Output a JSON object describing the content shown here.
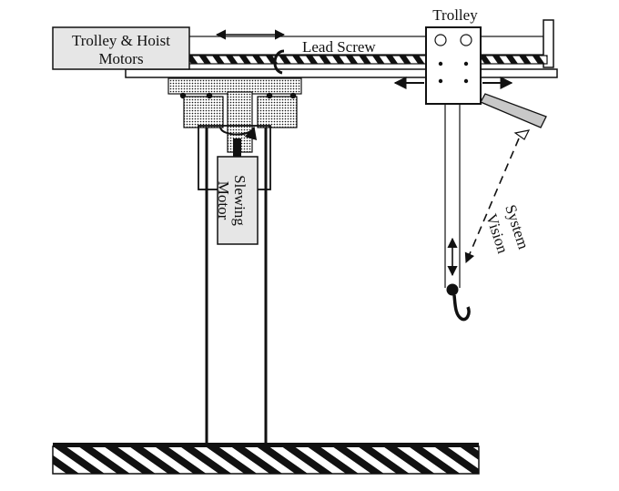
{
  "diagram": {
    "labels": {
      "motors_line1": "Trolley & Hoist",
      "motors_line2": "Motors",
      "lead_screw": "Lead Screw",
      "trolley": "Trolley",
      "slewing_line1": "Slewing",
      "slewing_line2": "Motor",
      "vision_line1": "Vision",
      "vision_line2": "System"
    }
  },
  "colors": {
    "ink": "#111111",
    "camera_fill": "#c8c8c8",
    "box_fill": "#e6e6e6",
    "background": "#ffffff"
  }
}
